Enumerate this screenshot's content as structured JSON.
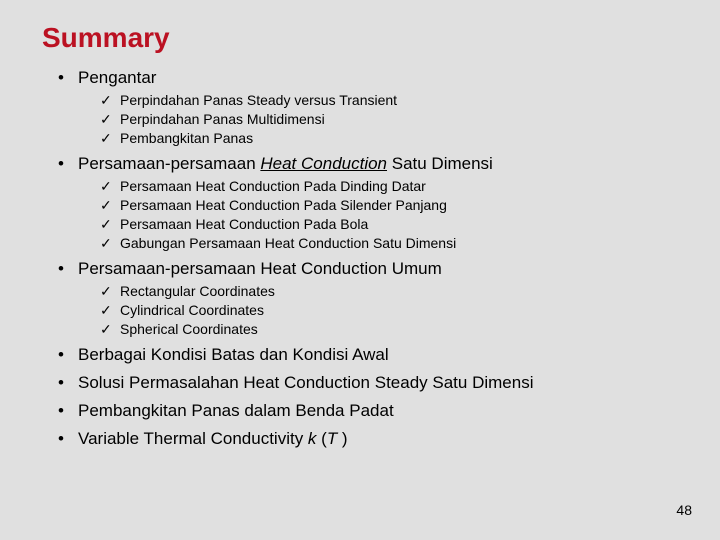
{
  "title_color": "#bb1122",
  "title": "Summary",
  "page_number": "48",
  "sections": [
    {
      "label_html": "Pengantar",
      "children": [
        "Perpindahan Panas Steady versus Transient",
        "Perpindahan Panas Multidimensi",
        "Pembangkitan Panas"
      ]
    },
    {
      "label_html": "Persamaan-persamaan <span class=\"italic underline\">Heat Conduction</span> Satu Dimensi",
      "children": [
        "Persamaan Heat Conduction Pada Dinding Datar",
        "Persamaan Heat Conduction Pada Silender Panjang",
        "Persamaan Heat Conduction Pada Bola",
        "Gabungan Persamaan Heat Conduction Satu Dimensi"
      ]
    },
    {
      "label_html": "Persamaan-persamaan Heat Conduction Umum",
      "children": [
        "Rectangular Coordinates",
        "Cylindrical Coordinates",
        "Spherical Coordinates"
      ]
    },
    {
      "label_html": "Berbagai Kondisi Batas dan Kondisi Awal",
      "children": []
    },
    {
      "label_html": "Solusi Permasalahan Heat Conduction Steady Satu Dimensi",
      "children": []
    },
    {
      "label_html": "Pembangkitan Panas dalam Benda Padat",
      "children": []
    },
    {
      "label_html": "Variable Thermal Conductivity <span class=\"italic\">k</span> (<span class=\"italic\">T </span>)",
      "children": []
    }
  ]
}
